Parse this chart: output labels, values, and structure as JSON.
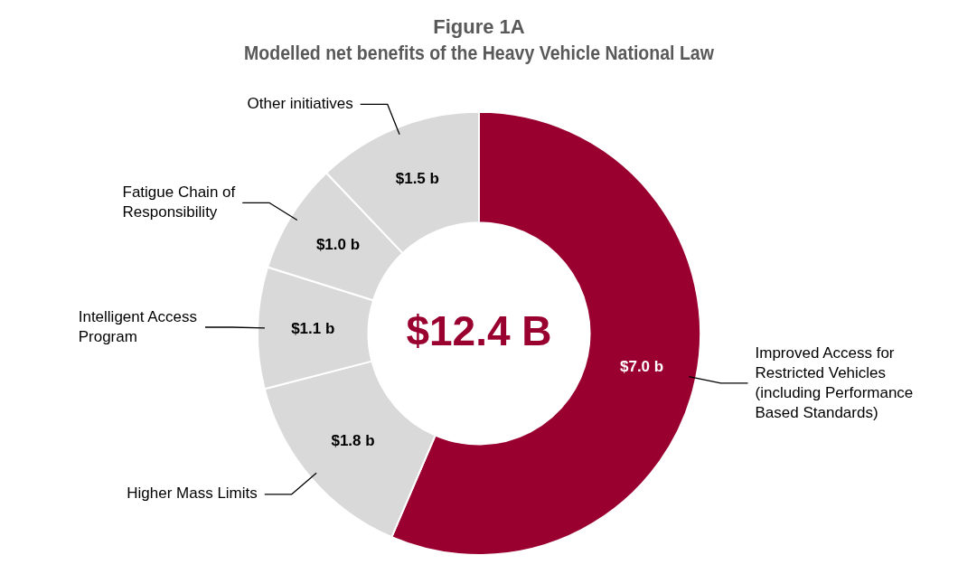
{
  "chart_data": {
    "type": "donut",
    "title": "Figure 1A",
    "subtitle": "Modelled net benefits of the Heavy Vehicle National Law",
    "categories": [
      "Improved Access for Restricted Vehicles (including Performance Based Standards)",
      "Higher Mass Limits",
      "Intelligent Access Program",
      "Fatigue Chain of Responsibility",
      "Other initiatives"
    ],
    "values": [
      7.0,
      1.8,
      1.1,
      1.0,
      1.5
    ],
    "value_labels": [
      "$7.0 b",
      "$1.8 b",
      "$1.1 b",
      "$1.0 b",
      "$1.5 b"
    ],
    "colors": [
      "#990030",
      "#d9d9d9",
      "#d9d9d9",
      "#d9d9d9",
      "#d9d9d9"
    ],
    "annotations": [
      "$12.4 B"
    ],
    "legend": false
  }
}
